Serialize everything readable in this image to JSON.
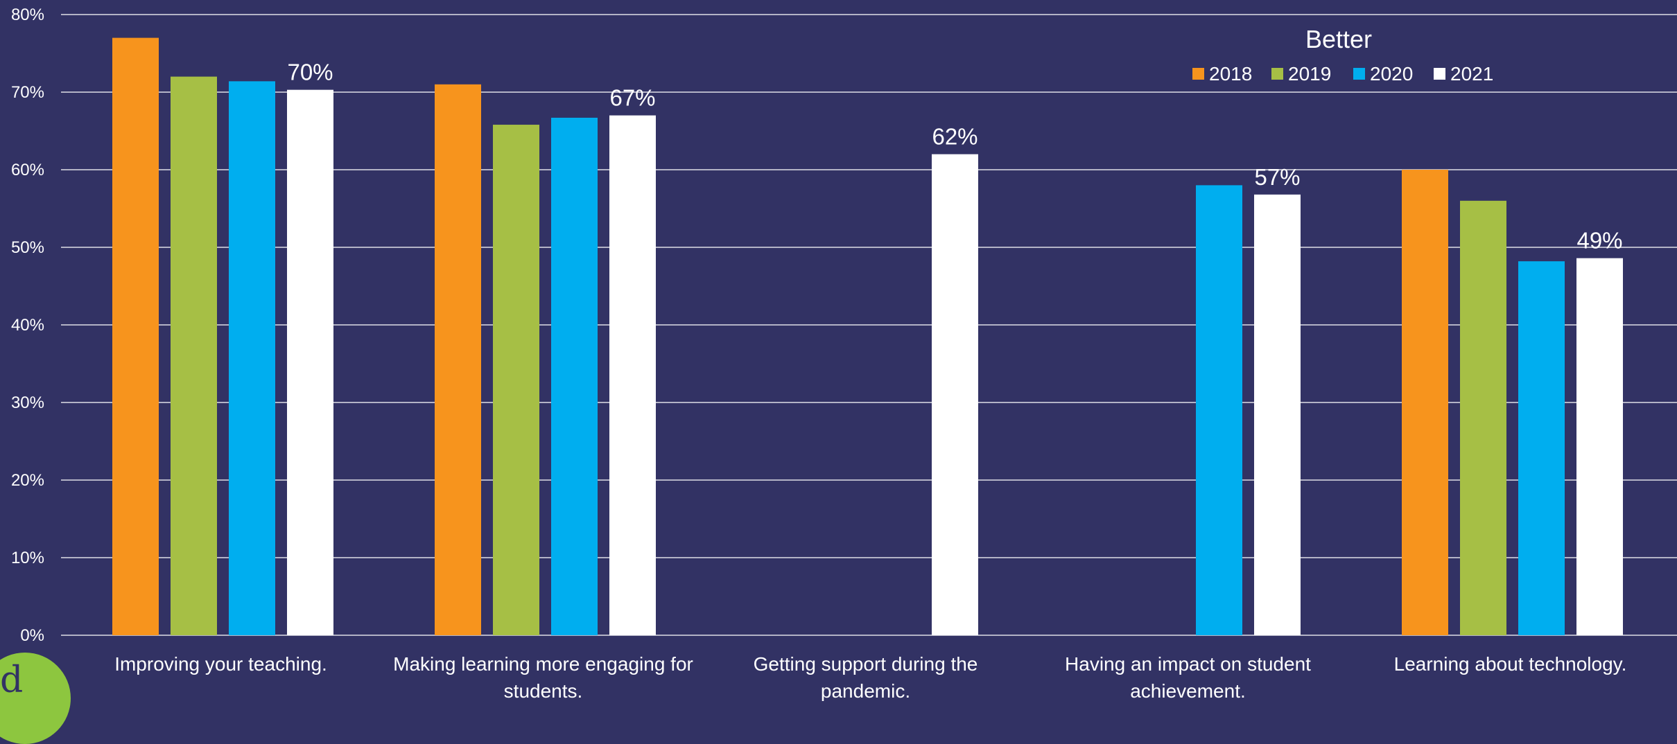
{
  "chart_data": {
    "type": "bar",
    "title": "",
    "xlabel": "",
    "ylabel": "",
    "ylim": [
      0,
      80
    ],
    "yticks": [
      0,
      10,
      20,
      30,
      40,
      50,
      60,
      70,
      80
    ],
    "ytick_labels": [
      "0%",
      "10%",
      "20%",
      "30%",
      "40%",
      "50%",
      "60%",
      "70%",
      "80%"
    ],
    "grid": true,
    "legend": {
      "title": "Better",
      "placement": "top-right",
      "entries": [
        "2018",
        "2019",
        "2020",
        "2021"
      ]
    },
    "categories": [
      [
        "Improving your teaching."
      ],
      [
        "Making learning more engaging for",
        "students."
      ],
      [
        "Getting support during the",
        "pandemic."
      ],
      [
        "Having an impact on student",
        "achievement."
      ],
      [
        "Learning about technology."
      ]
    ],
    "series": [
      {
        "name": "2018",
        "color": "#f7941d",
        "values": [
          77,
          71,
          null,
          null,
          60
        ]
      },
      {
        "name": "2019",
        "color": "#a6bf45",
        "values": [
          72,
          65.8,
          null,
          null,
          56
        ]
      },
      {
        "name": "2020",
        "color": "#00aeef",
        "values": [
          71.4,
          66.7,
          null,
          58,
          48.2
        ]
      },
      {
        "name": "2021",
        "color": "#ffffff",
        "values": [
          70.3,
          67,
          62,
          56.8,
          48.6
        ]
      }
    ],
    "data_labels": {
      "series": "2021",
      "labels": [
        "70%",
        "67%",
        "62%",
        "57%",
        "49%"
      ]
    }
  },
  "logo": {
    "letter": "d",
    "color": "#8dc63f"
  }
}
